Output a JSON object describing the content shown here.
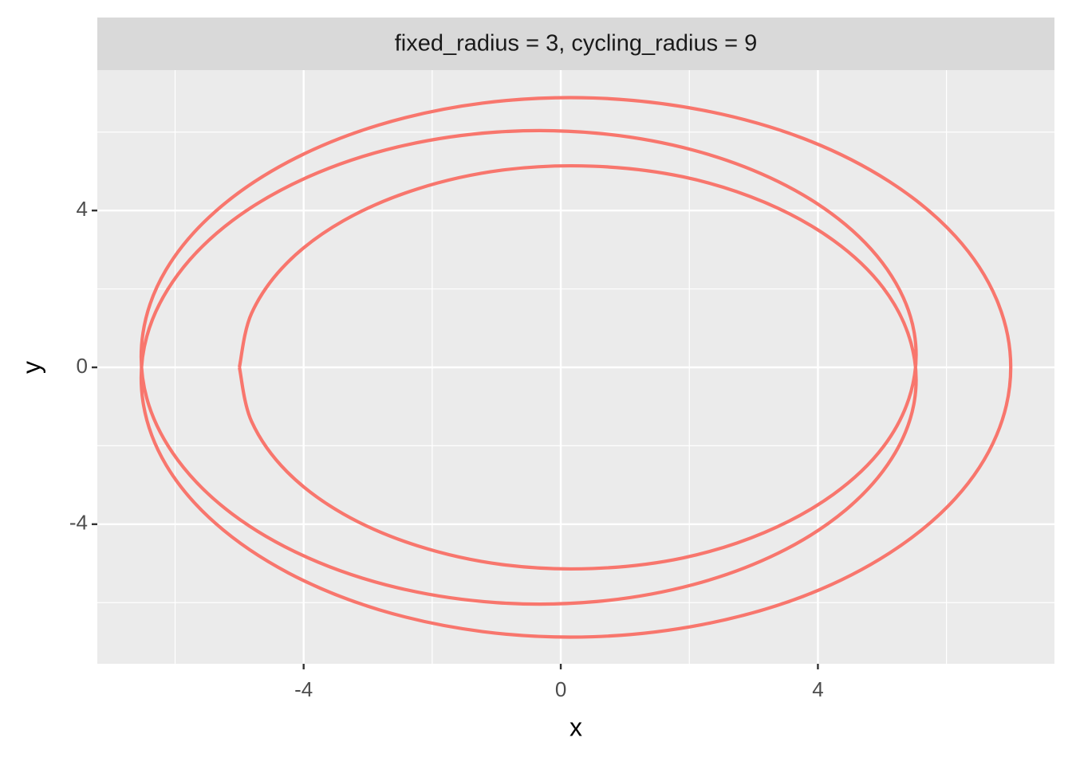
{
  "chart_data": {
    "type": "line",
    "facet_label": "fixed_radius = 3, cycling_radius = 9",
    "x_label": "x",
    "y_label": "y",
    "color": "#F8766D",
    "grid": true,
    "xlim": [
      -7.21,
      7.68
    ],
    "ylim": [
      -7.56,
      7.58
    ],
    "xticks": [
      -4,
      0,
      4
    ],
    "yticks": [
      -4,
      0,
      4
    ],
    "series": [
      {
        "x": [
          -5,
          -4.81,
          -4.26,
          -3.38,
          -2.23,
          -0.91,
          0.5,
          1.9,
          3.17,
          4.24,
          5.02,
          5.45,
          5.5,
          5.15,
          4.43,
          3.38,
          2.06,
          0.57,
          -1,
          -2.54,
          -3.94,
          -5.11,
          -5.96,
          -6.44,
          -6.5,
          -6.14,
          -5.37,
          -4.24,
          -2.83,
          -1.21,
          0.5,
          2.2,
          3.77,
          5.11,
          6.14,
          6.78,
          7,
          6.78,
          6.14,
          5.11,
          3.77,
          2.2,
          0.5,
          -1.21,
          -2.83,
          -4.24,
          -5.37,
          -6.14,
          -6.5,
          -6.44,
          -5.96,
          -5.11,
          -3.94,
          -2.54,
          -1,
          0.57,
          2.06,
          3.38,
          4.43,
          5.15,
          5.5,
          5.45,
          5.02,
          4.24,
          3.17,
          1.9,
          0.5,
          -0.91,
          -2.23,
          -3.38,
          -4.26,
          -4.81,
          -5
        ],
        "values": [
          0,
          -1.38,
          -2.66,
          -3.74,
          -4.55,
          -5.03,
          -5.13,
          -4.86,
          -4.21,
          -3.24,
          -2.02,
          -0.61,
          0.87,
          2.32,
          3.64,
          4.74,
          5.54,
          5.97,
          6,
          5.62,
          4.85,
          3.74,
          2.36,
          0.79,
          -0.87,
          -2.49,
          -3.98,
          -5.24,
          -6.18,
          -6.74,
          -6.87,
          -6.56,
          -5.84,
          -4.74,
          -3.34,
          -1.73,
          0,
          1.73,
          3.34,
          4.74,
          5.84,
          6.56,
          6.87,
          6.74,
          6.18,
          5.24,
          3.98,
          2.49,
          0.87,
          -0.79,
          -2.36,
          -3.74,
          -4.85,
          -5.62,
          -6,
          -5.97,
          -5.54,
          -4.74,
          -3.64,
          -2.32,
          -0.87,
          0.61,
          2.02,
          3.24,
          4.21,
          4.86,
          5.13,
          5.03,
          4.55,
          3.74,
          2.66,
          1.38,
          0
        ]
      }
    ]
  }
}
